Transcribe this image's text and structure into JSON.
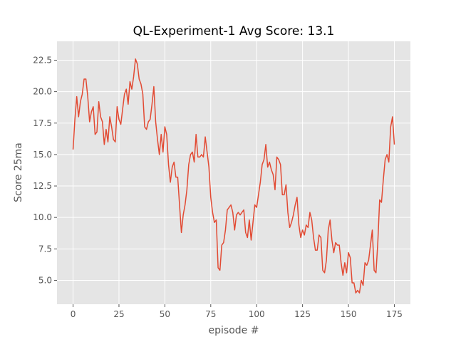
{
  "chart_data": {
    "type": "line",
    "title": "QL-Experiment-1 Avg Score: 13.1",
    "xlabel": "episode #",
    "ylabel": "Score 25ma",
    "xlim": [
      -8.75,
      183.75
    ],
    "ylim": [
      3.1,
      24.0
    ],
    "x_ticks": [
      0,
      25,
      50,
      75,
      100,
      125,
      150,
      175
    ],
    "y_ticks": [
      5.0,
      7.5,
      10.0,
      12.5,
      15.0,
      17.5,
      20.0,
      22.5
    ],
    "x_tick_labels": [
      "0",
      "25",
      "50",
      "75",
      "100",
      "125",
      "150",
      "175"
    ],
    "y_tick_labels": [
      "5.0",
      "7.5",
      "10.0",
      "12.5",
      "15.0",
      "17.5",
      "20.0",
      "22.5"
    ],
    "grid": true,
    "background_color": "#e5e5e5",
    "grid_color": "#ffffff",
    "series": [
      {
        "color": "#e24a33",
        "x": [
          0,
          1,
          2,
          3,
          4,
          5,
          6,
          7,
          8,
          9,
          10,
          11,
          12,
          13,
          14,
          15,
          16,
          17,
          18,
          19,
          20,
          21,
          22,
          23,
          24,
          25,
          26,
          27,
          28,
          29,
          30,
          31,
          32,
          33,
          34,
          35,
          36,
          37,
          38,
          39,
          40,
          41,
          42,
          43,
          44,
          45,
          46,
          47,
          48,
          49,
          50,
          51,
          52,
          53,
          54,
          55,
          56,
          57,
          58,
          59,
          60,
          61,
          62,
          63,
          64,
          65,
          66,
          67,
          68,
          69,
          70,
          71,
          72,
          73,
          74,
          75,
          76,
          77,
          78,
          79,
          80,
          81,
          82,
          83,
          84,
          85,
          86,
          87,
          88,
          89,
          90,
          91,
          92,
          93,
          94,
          95,
          96,
          97,
          98,
          99,
          100,
          101,
          102,
          103,
          104,
          105,
          106,
          107,
          108,
          109,
          110,
          111,
          112,
          113,
          114,
          115,
          116,
          117,
          118,
          119,
          120,
          121,
          122,
          123,
          124,
          125,
          126,
          127,
          128,
          129,
          130,
          131,
          132,
          133,
          134,
          135,
          136,
          137,
          138,
          139,
          140,
          141,
          142,
          143,
          144,
          145,
          146,
          147,
          148,
          149,
          150,
          151,
          152,
          153,
          154,
          155,
          156,
          157,
          158,
          159,
          160,
          161,
          162,
          163,
          164,
          165,
          166,
          167,
          168,
          169,
          170,
          171,
          172,
          173,
          174,
          175
        ],
        "y": [
          15.4,
          17.8,
          19.6,
          18.0,
          19.2,
          19.8,
          21.0,
          21.0,
          19.6,
          17.6,
          18.4,
          18.8,
          16.6,
          16.8,
          19.2,
          18.0,
          17.6,
          15.8,
          17.0,
          16.0,
          18.0,
          17.2,
          16.2,
          16.0,
          18.8,
          17.8,
          17.4,
          18.6,
          19.8,
          20.2,
          19.0,
          20.8,
          20.2,
          21.2,
          22.6,
          22.2,
          21.0,
          20.6,
          19.8,
          17.2,
          17.0,
          17.6,
          17.8,
          19.0,
          20.4,
          17.6,
          16.2,
          15.0,
          16.6,
          15.2,
          17.2,
          16.6,
          14.2,
          12.8,
          14.0,
          14.4,
          13.2,
          13.2,
          11.0,
          8.8,
          10.2,
          11.0,
          12.2,
          14.2,
          15.0,
          15.2,
          14.4,
          16.6,
          14.8,
          14.8,
          15.0,
          14.8,
          16.4,
          15.2,
          14.0,
          11.6,
          10.4,
          9.6,
          9.8,
          6.0,
          5.8,
          7.8,
          8.0,
          9.0,
          10.6,
          10.8,
          11.0,
          10.4,
          9.0,
          10.2,
          10.4,
          10.2,
          10.4,
          10.6,
          8.8,
          8.4,
          9.8,
          8.2,
          9.6,
          11.0,
          10.8,
          11.8,
          12.8,
          14.2,
          14.6,
          15.8,
          14.0,
          14.4,
          13.8,
          13.4,
          12.2,
          14.8,
          14.6,
          14.2,
          11.8,
          11.8,
          12.6,
          10.4,
          9.2,
          9.6,
          10.2,
          11.0,
          11.6,
          9.4,
          8.4,
          9.0,
          8.6,
          9.4,
          9.2,
          10.4,
          9.8,
          8.4,
          7.4,
          7.4,
          8.6,
          8.4,
          5.8,
          5.6,
          6.6,
          9.0,
          9.8,
          8.2,
          7.2,
          8.0,
          7.8,
          7.8,
          6.4,
          5.4,
          6.4,
          5.6,
          7.2,
          6.8,
          4.8,
          4.8,
          4.0,
          4.2,
          4.0,
          5.0,
          4.6,
          6.4,
          6.2,
          6.6,
          7.8,
          9.0,
          5.8,
          5.6,
          8.0,
          11.4,
          11.2,
          13.0,
          14.6,
          15.0,
          14.4,
          17.2,
          18.0,
          15.8
        ]
      }
    ]
  }
}
